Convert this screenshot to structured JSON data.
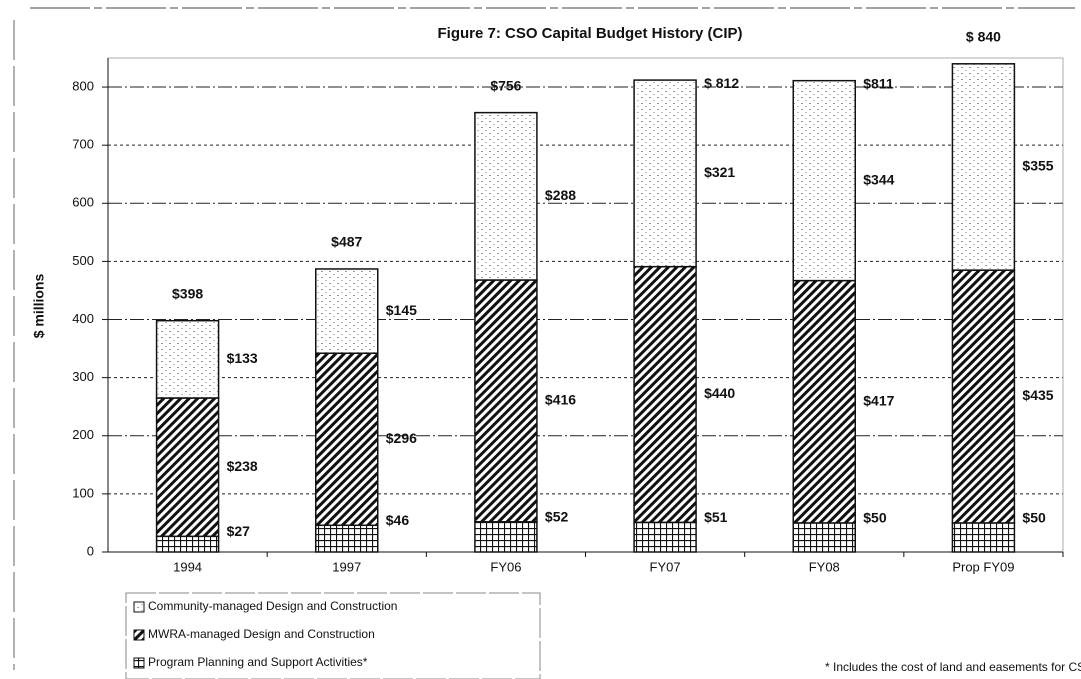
{
  "chart_data": {
    "type": "stacked_bar",
    "title": "Figure 7:  CSO Capital Budget History (CIP)",
    "y_label": "$ millions",
    "categories": [
      "1994",
      "1997",
      "FY06",
      "FY07",
      "FY08",
      "Prop FY09"
    ],
    "series": [
      {
        "name": "Program Planning and Support Activities*",
        "color": "#111111",
        "pattern": "grid",
        "values": [
          27,
          46,
          52,
          51,
          50,
          50
        ],
        "value_labels": [
          "$27",
          "$46",
          "$52",
          "$51",
          "$50",
          "$50"
        ]
      },
      {
        "name": "MWRA-managed Design and Construction",
        "color": "#111111",
        "pattern": "diagonal",
        "values": [
          238,
          296,
          416,
          440,
          417,
          435
        ],
        "value_labels": [
          "$238",
          "$296",
          "$416",
          "$440",
          "$417",
          "$435"
        ]
      },
      {
        "name": "Community-managed Design and Construction",
        "color": "#111111",
        "pattern": "dots",
        "values": [
          133,
          145,
          288,
          321,
          344,
          355
        ],
        "value_labels": [
          "$133",
          "$145",
          "$288",
          "$321",
          "$344",
          "$355"
        ]
      }
    ],
    "totals": [
      398,
      487,
      756,
      812,
      811,
      840
    ],
    "total_labels": [
      "$398",
      "$487",
      "$756",
      "$ 812",
      "$811",
      "$ 840"
    ],
    "ylim": [
      0,
      850
    ],
    "yticks": [
      0,
      100,
      200,
      300,
      400,
      500,
      600,
      700,
      800
    ],
    "grid": true,
    "legend": "bottom-left",
    "footnote": "* Includes the cost of land and easements for CSO"
  }
}
